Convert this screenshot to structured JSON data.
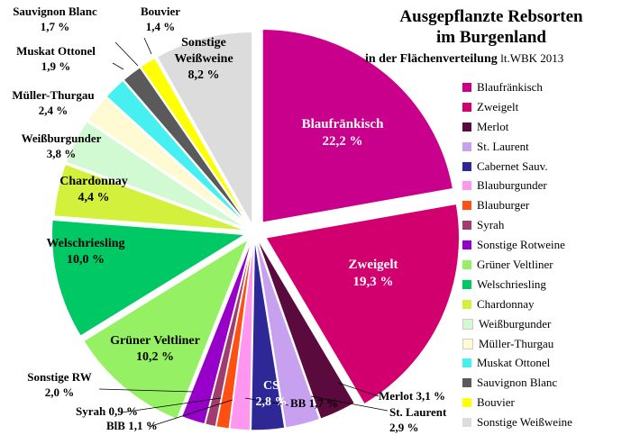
{
  "title_line1": "Ausgepflanzte Rebsorten",
  "title_line2": "im Burgenland",
  "title_line3": "in der Flächenverteilung",
  "source": "lt.WBK 2013",
  "chart_data": {
    "type": "pie",
    "title": "Ausgepflanzte Rebsorten im Burgenland in der Flächenverteilung",
    "unit": "%",
    "legend_position": "right",
    "slices": [
      {
        "name": "Blaufränkisch",
        "value": 22.2,
        "label": "22,2 %",
        "color": "#c8008c"
      },
      {
        "name": "Zweigelt",
        "value": 19.3,
        "label": "19,3 %",
        "color": "#d2006e"
      },
      {
        "name": "Merlot",
        "value": 3.1,
        "label": "3,1 %",
        "color": "#5a0a3c"
      },
      {
        "name": "St. Laurent",
        "value": 2.9,
        "label": "2,9 %",
        "color": "#c8a0f0"
      },
      {
        "name": "Cabernet Sauv.",
        "value": 2.8,
        "label": "2,8 %",
        "color": "#2d2896"
      },
      {
        "name": "Blauburgunder",
        "value": 1.7,
        "label": "1,7 %",
        "color": "#ff96f0"
      },
      {
        "name": "Blauburger",
        "value": 1.1,
        "label": "1,1 %",
        "color": "#ff5014"
      },
      {
        "name": "Syrah",
        "value": 0.9,
        "label": "0,9 %",
        "color": "#a03c6e"
      },
      {
        "name": "Sonstige Rotweine",
        "value": 2.0,
        "label": "2,0 %",
        "color": "#9600c8"
      },
      {
        "name": "Grüner Veltliner",
        "value": 10.2,
        "label": "10,2 %",
        "color": "#96f064"
      },
      {
        "name": "Welschriesling",
        "value": 10.0,
        "label": "10,0 %",
        "color": "#00c864"
      },
      {
        "name": "Chardonnay",
        "value": 4.4,
        "label": "4,4 %",
        "color": "#d2f03c"
      },
      {
        "name": "Weißburgunder",
        "value": 3.8,
        "label": "3,8 %",
        "color": "#d2fad2"
      },
      {
        "name": "Müller-Thurgau",
        "value": 2.4,
        "label": "2,4 %",
        "color": "#fffad2"
      },
      {
        "name": "Muskat Ottonel",
        "value": 1.9,
        "label": "1,9 %",
        "color": "#46f0f0"
      },
      {
        "name": "Sauvignon Blanc",
        "value": 1.7,
        "label": "1,7 %",
        "color": "#5a5a5a"
      },
      {
        "name": "Bouvier",
        "value": 1.4,
        "label": "1,4 %",
        "color": "#ffff00"
      },
      {
        "name": "Sonstige Weißweine",
        "value": 8.2,
        "label": "8,2 %",
        "color": "#dcdcdc"
      }
    ],
    "slice_labels": [
      {
        "lines": [
          "Blaufränkisch",
          "22,2 %"
        ],
        "color": "#ffffff"
      },
      {
        "lines": [
          "Zweigelt",
          "19,3 %"
        ],
        "color": "#ffffff"
      },
      {
        "lines": [
          "Merlot 3,1 %"
        ],
        "color": "#000000"
      },
      {
        "lines": [
          "St. Laurent",
          "2,9 %"
        ],
        "color": "#000000"
      },
      {
        "lines": [
          "CS",
          "2,8 %"
        ],
        "color": "#ffffff"
      },
      {
        "lines": [
          "BB 1,7 %"
        ],
        "color": "#000000"
      },
      {
        "lines": [
          "BlB   1,1 %"
        ],
        "color": "#000000"
      },
      {
        "lines": [
          "Syrah 0,9 %"
        ],
        "color": "#000000"
      },
      {
        "lines": [
          "Sonstige RW",
          "2,0 %"
        ],
        "color": "#000000"
      },
      {
        "lines": [
          "Grüner Veltliner",
          "10,2 %"
        ],
        "color": "#000000"
      },
      {
        "lines": [
          "Welschriesling",
          "10,0 %"
        ],
        "color": "#000000"
      },
      {
        "lines": [
          "Chardonnay",
          "4,4 %"
        ],
        "color": "#000000"
      },
      {
        "lines": [
          "Weißburgunder",
          "3,8 %"
        ],
        "color": "#000000"
      },
      {
        "lines": [
          "Müller-Thurgau",
          "2,4 %"
        ],
        "color": "#000000"
      },
      {
        "lines": [
          "Muskat Ottonel",
          "1,9 %"
        ],
        "color": "#000000"
      },
      {
        "lines": [
          "Sauvignon Blanc",
          "1,7 %"
        ],
        "color": "#000000"
      },
      {
        "lines": [
          "Bouvier",
          "1,4 %"
        ],
        "color": "#000000"
      },
      {
        "lines": [
          "Sonstige",
          "Weißweine",
          "8,2 %"
        ],
        "color": "#000000"
      }
    ]
  }
}
